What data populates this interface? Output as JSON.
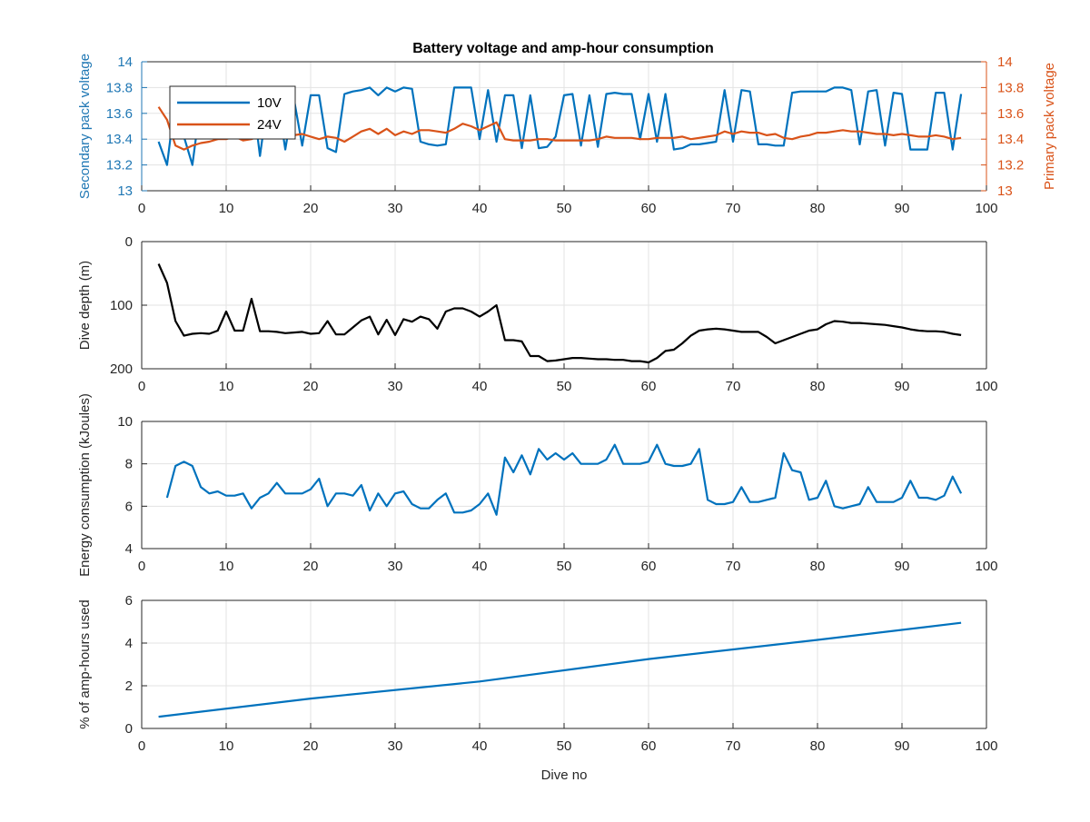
{
  "figure": {
    "title": "Battery voltage and amp-hour consumption"
  },
  "chart_data": [
    {
      "type": "line",
      "title": "Battery voltage and amp-hour consumption",
      "xlabel": "",
      "ylabel": "Secondary pack voltage",
      "ylabel_right": "Primary pack voltage",
      "xlim": [
        0,
        100
      ],
      "ylim": [
        13,
        14
      ],
      "ylim_right": [
        13,
        14
      ],
      "xticks": [
        0,
        10,
        20,
        30,
        40,
        50,
        60,
        70,
        80,
        90,
        100
      ],
      "yticks": [
        13,
        13.2,
        13.4,
        13.6,
        13.8,
        14
      ],
      "yticks_right": [
        13,
        13.2,
        13.4,
        13.6,
        13.8,
        14
      ],
      "grid": true,
      "legend": "top-left",
      "colors": {
        "left_axis": "#1f77b4",
        "right_axis": "#d95319"
      },
      "series": [
        {
          "name": "10V",
          "color": "#0072bd",
          "axis": "left",
          "x": [
            2,
            3,
            4,
            5,
            6,
            7,
            8,
            9,
            10,
            11,
            12,
            13,
            14,
            15,
            16,
            17,
            18,
            19,
            20,
            21,
            22,
            23,
            24,
            25,
            26,
            27,
            28,
            29,
            30,
            31,
            32,
            33,
            34,
            35,
            36,
            37,
            38,
            39,
            40,
            41,
            42,
            43,
            44,
            45,
            46,
            47,
            48,
            49,
            50,
            51,
            52,
            53,
            54,
            55,
            56,
            57,
            58,
            59,
            60,
            61,
            62,
            63,
            64,
            65,
            66,
            67,
            68,
            69,
            70,
            71,
            72,
            73,
            74,
            75,
            76,
            77,
            78,
            79,
            80,
            81,
            82,
            83,
            84,
            85,
            86,
            87,
            88,
            89,
            90,
            91,
            92,
            93,
            94,
            95,
            96,
            97
          ],
          "y": [
            13.38,
            13.2,
            13.72,
            13.42,
            13.2,
            13.7,
            13.75,
            13.4,
            13.7,
            13.55,
            13.45,
            13.8,
            13.27,
            13.75,
            13.75,
            13.32,
            13.72,
            13.35,
            13.74,
            13.74,
            13.33,
            13.3,
            13.75,
            13.77,
            13.78,
            13.8,
            13.74,
            13.8,
            13.77,
            13.8,
            13.79,
            13.38,
            13.36,
            13.35,
            13.36,
            13.8,
            13.8,
            13.8,
            13.4,
            13.78,
            13.38,
            13.74,
            13.74,
            13.33,
            13.74,
            13.33,
            13.34,
            13.42,
            13.74,
            13.75,
            13.35,
            13.74,
            13.34,
            13.75,
            13.76,
            13.75,
            13.75,
            13.4,
            13.75,
            13.38,
            13.75,
            13.32,
            13.33,
            13.36,
            13.36,
            13.37,
            13.38,
            13.78,
            13.38,
            13.78,
            13.77,
            13.36,
            13.36,
            13.35,
            13.35,
            13.76,
            13.77,
            13.77,
            13.77,
            13.77,
            13.8,
            13.8,
            13.78,
            13.36,
            13.77,
            13.78,
            13.35,
            13.76,
            13.75,
            13.32,
            13.32,
            13.32,
            13.76,
            13.76,
            13.32,
            13.75
          ]
        },
        {
          "name": "24V",
          "color": "#d95319",
          "axis": "right",
          "x": [
            2,
            3,
            4,
            5,
            6,
            7,
            8,
            9,
            10,
            11,
            12,
            13,
            14,
            15,
            16,
            17,
            18,
            19,
            20,
            21,
            22,
            23,
            24,
            25,
            26,
            27,
            28,
            29,
            30,
            31,
            32,
            33,
            34,
            35,
            36,
            37,
            38,
            39,
            40,
            41,
            42,
            43,
            44,
            45,
            46,
            47,
            48,
            49,
            50,
            51,
            52,
            53,
            54,
            55,
            56,
            57,
            58,
            59,
            60,
            61,
            62,
            63,
            64,
            65,
            66,
            67,
            68,
            69,
            70,
            71,
            72,
            73,
            74,
            75,
            76,
            77,
            78,
            79,
            80,
            81,
            82,
            83,
            84,
            85,
            86,
            87,
            88,
            89,
            90,
            91,
            92,
            93,
            94,
            95,
            96,
            97
          ],
          "y": [
            13.65,
            13.55,
            13.35,
            13.32,
            13.35,
            13.37,
            13.38,
            13.4,
            13.4,
            13.42,
            13.39,
            13.4,
            13.43,
            13.42,
            13.44,
            13.43,
            13.43,
            13.44,
            13.42,
            13.4,
            13.42,
            13.41,
            13.38,
            13.42,
            13.46,
            13.48,
            13.44,
            13.48,
            13.43,
            13.46,
            13.44,
            13.47,
            13.47,
            13.46,
            13.45,
            13.48,
            13.52,
            13.5,
            13.47,
            13.5,
            13.53,
            13.4,
            13.39,
            13.39,
            13.39,
            13.4,
            13.4,
            13.39,
            13.39,
            13.39,
            13.39,
            13.39,
            13.4,
            13.42,
            13.41,
            13.41,
            13.41,
            13.4,
            13.4,
            13.41,
            13.41,
            13.41,
            13.42,
            13.4,
            13.41,
            13.42,
            13.43,
            13.46,
            13.44,
            13.46,
            13.45,
            13.45,
            13.43,
            13.44,
            13.41,
            13.4,
            13.42,
            13.43,
            13.45,
            13.45,
            13.46,
            13.47,
            13.46,
            13.46,
            13.45,
            13.44,
            13.44,
            13.43,
            13.44,
            13.43,
            13.42,
            13.42,
            13.43,
            13.42,
            13.4,
            13.41
          ]
        }
      ]
    },
    {
      "type": "line",
      "xlabel": "",
      "ylabel": "Dive depth (m)",
      "xlim": [
        0,
        100
      ],
      "ylim": [
        0,
        200
      ],
      "y_reversed": true,
      "xticks": [
        0,
        10,
        20,
        30,
        40,
        50,
        60,
        70,
        80,
        90,
        100
      ],
      "yticks": [
        0,
        100,
        200
      ],
      "grid": true,
      "series": [
        {
          "color": "#000000",
          "x": [
            2,
            3,
            4,
            5,
            6,
            7,
            8,
            9,
            10,
            11,
            12,
            13,
            14,
            15,
            16,
            17,
            18,
            19,
            20,
            21,
            22,
            23,
            24,
            25,
            26,
            27,
            28,
            29,
            30,
            31,
            32,
            33,
            34,
            35,
            36,
            37,
            38,
            39,
            40,
            41,
            42,
            43,
            44,
            45,
            46,
            47,
            48,
            49,
            50,
            51,
            52,
            53,
            54,
            55,
            56,
            57,
            58,
            59,
            60,
            61,
            62,
            63,
            64,
            65,
            66,
            67,
            68,
            69,
            70,
            71,
            72,
            73,
            74,
            75,
            76,
            77,
            78,
            79,
            80,
            81,
            82,
            83,
            84,
            85,
            86,
            87,
            88,
            89,
            90,
            91,
            92,
            93,
            94,
            95,
            96,
            97
          ],
          "y": [
            35,
            65,
            125,
            148,
            145,
            144,
            145,
            140,
            110,
            140,
            140,
            90,
            141,
            141,
            142,
            144,
            143,
            142,
            145,
            144,
            125,
            146,
            146,
            135,
            124,
            118,
            146,
            123,
            147,
            122,
            126,
            118,
            122,
            137,
            110,
            105,
            105,
            110,
            118,
            110,
            100,
            155,
            155,
            157,
            180,
            180,
            188,
            187,
            185,
            183,
            183,
            184,
            185,
            185,
            186,
            186,
            188,
            188,
            190,
            183,
            172,
            170,
            160,
            148,
            140,
            138,
            137,
            138,
            140,
            142,
            142,
            142,
            150,
            160,
            155,
            150,
            145,
            140,
            138,
            130,
            125,
            126,
            128,
            128,
            129,
            130,
            131,
            133,
            135,
            138,
            140,
            141,
            141,
            142,
            145,
            147
          ]
        }
      ]
    },
    {
      "type": "line",
      "xlabel": "",
      "ylabel": "Energy consumption (kJoules)",
      "xlim": [
        0,
        100
      ],
      "ylim": [
        4,
        10
      ],
      "xticks": [
        0,
        10,
        20,
        30,
        40,
        50,
        60,
        70,
        80,
        90,
        100
      ],
      "yticks": [
        4,
        6,
        8,
        10
      ],
      "grid": true,
      "series": [
        {
          "color": "#0072bd",
          "x": [
            3,
            4,
            5,
            6,
            7,
            8,
            9,
            10,
            11,
            12,
            13,
            14,
            15,
            16,
            17,
            18,
            19,
            20,
            21,
            22,
            23,
            24,
            25,
            26,
            27,
            28,
            29,
            30,
            31,
            32,
            33,
            34,
            35,
            36,
            37,
            38,
            39,
            40,
            41,
            42,
            43,
            44,
            45,
            46,
            47,
            48,
            49,
            50,
            51,
            52,
            53,
            54,
            55,
            56,
            57,
            58,
            59,
            60,
            61,
            62,
            63,
            64,
            65,
            66,
            67,
            68,
            69,
            70,
            71,
            72,
            73,
            74,
            75,
            76,
            77,
            78,
            79,
            80,
            81,
            82,
            83,
            84,
            85,
            86,
            87,
            88,
            89,
            90,
            91,
            92,
            93,
            94,
            95,
            96,
            97
          ],
          "y": [
            6.4,
            7.9,
            8.1,
            7.9,
            6.9,
            6.6,
            6.7,
            6.5,
            6.5,
            6.6,
            5.9,
            6.4,
            6.6,
            7.1,
            6.6,
            6.6,
            6.6,
            6.8,
            7.3,
            6.0,
            6.6,
            6.6,
            6.5,
            7.0,
            5.8,
            6.6,
            6.0,
            6.6,
            6.7,
            6.1,
            5.9,
            5.9,
            6.3,
            6.6,
            5.7,
            5.7,
            5.8,
            6.1,
            6.6,
            5.6,
            8.3,
            7.6,
            8.4,
            7.5,
            8.7,
            8.2,
            8.5,
            8.2,
            8.5,
            8.0,
            8.0,
            8.0,
            8.2,
            8.9,
            8.0,
            8.0,
            8.0,
            8.1,
            8.9,
            8.0,
            7.9,
            7.9,
            8.0,
            8.7,
            6.3,
            6.1,
            6.1,
            6.2,
            6.9,
            6.2,
            6.2,
            6.3,
            6.4,
            8.5,
            7.7,
            7.6,
            6.3,
            6.4,
            7.2,
            6.0,
            5.9,
            6.0,
            6.1,
            6.9,
            6.2,
            6.2,
            6.2,
            6.4,
            7.2,
            6.4,
            6.4,
            6.3,
            6.5,
            7.4,
            6.6
          ]
        }
      ]
    },
    {
      "type": "line",
      "xlabel": "Dive no",
      "ylabel": "% of amp-hours used",
      "xlim": [
        0,
        100
      ],
      "ylim": [
        0,
        6
      ],
      "xticks": [
        0,
        10,
        20,
        30,
        40,
        50,
        60,
        70,
        80,
        90,
        100
      ],
      "yticks": [
        0,
        2,
        4,
        6
      ],
      "grid": true,
      "series": [
        {
          "color": "#0072bd",
          "x": [
            2,
            20,
            40,
            60,
            80,
            97
          ],
          "y": [
            0.55,
            1.4,
            2.2,
            3.25,
            4.15,
            4.95
          ]
        }
      ]
    }
  ]
}
